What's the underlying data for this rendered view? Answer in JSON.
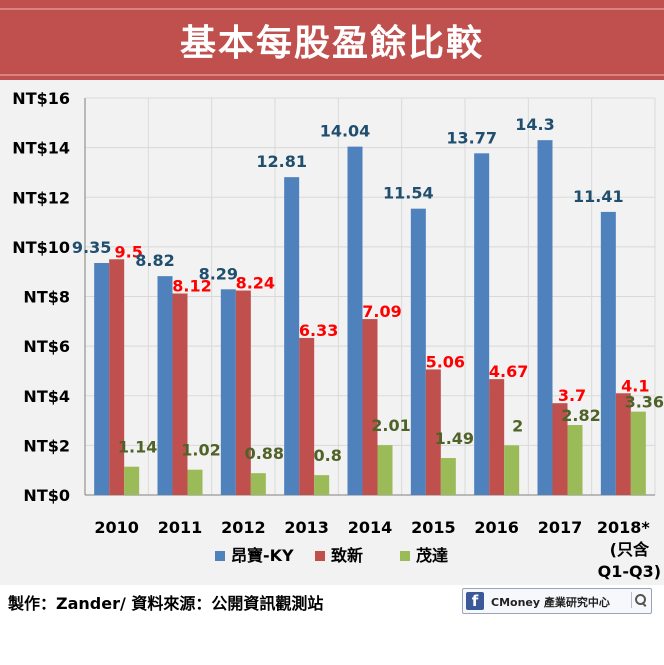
{
  "title": "基本每股盈餘比較",
  "footer": {
    "credit": "製作：Zander/ 資料來源：公開資訊觀測站",
    "brand_icon": "f",
    "brand_text": "CMoney 產業研究中心"
  },
  "chart_data": {
    "type": "bar",
    "title": "基本每股盈餘比較",
    "categories": [
      "2010",
      "2011",
      "2012",
      "2013",
      "2014",
      "2015",
      "2016",
      "2017",
      "2018*"
    ],
    "category_note": [
      "(只含",
      "Q1-Q3)"
    ],
    "series": [
      {
        "name": "昂寶-KY",
        "color": "#4f81bd",
        "label_color": "#1f4e6e",
        "labels": [
          "9.35",
          "8.82",
          "8.29",
          "12.81",
          "14.04",
          "11.54",
          "13.77",
          "14.3",
          "11.41"
        ],
        "values": [
          9.35,
          8.82,
          8.29,
          12.81,
          14.04,
          11.54,
          13.77,
          14.3,
          11.41
        ]
      },
      {
        "name": "致新",
        "color": "#c0504d",
        "label_color": "#ff0000",
        "labels": [
          "9.5",
          "8.12",
          "8.24",
          "6.33",
          "7.09",
          "5.06",
          "4.67",
          "3.7",
          "4.1"
        ],
        "values": [
          9.5,
          8.12,
          8.24,
          6.33,
          7.09,
          5.06,
          4.67,
          3.7,
          4.1
        ]
      },
      {
        "name": "茂達",
        "color": "#9bbb59",
        "label_color": "#4f6228",
        "labels": [
          "1.14",
          "1.02",
          "0.88",
          "0.8",
          "2.01",
          "1.49",
          "2",
          "2.82",
          "3.36"
        ],
        "values": [
          1.14,
          1.02,
          0.88,
          0.8,
          2.01,
          1.49,
          2,
          2.82,
          3.36
        ]
      }
    ],
    "yticks": [
      "NT$0",
      "NT$2",
      "NT$4",
      "NT$6",
      "NT$8",
      "NT$10",
      "NT$12",
      "NT$14",
      "NT$16"
    ],
    "ylim": [
      0,
      16
    ],
    "grid": true,
    "legend": "bottom"
  }
}
